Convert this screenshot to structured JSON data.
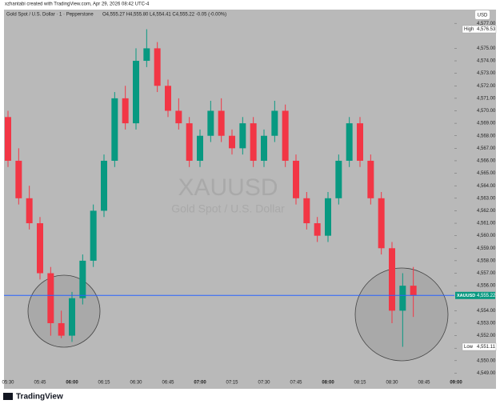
{
  "chart_data": {
    "type": "candlestick",
    "header": "xzhantabi created with TradingView.com, Apr 29, 2026 08:42 UTC-4",
    "title": "Gold Spot / U.S. Dollar · 1 · Pepperstone",
    "ohlc_text": "O4,555.27 H4,555.80 L4,554.41 C4,555.22 -0.05 (-0.00%)",
    "currency": "USD",
    "watermark_symbol": "XAUUSD",
    "watermark_name": "Gold Spot / U.S. Dollar",
    "brand": "TradingView",
    "up_color": "#089981",
    "down_color": "#f23645",
    "categories": [
      "05:30",
      null,
      null,
      "05:45",
      null,
      null,
      "06:00",
      null,
      null,
      "06:15",
      null,
      null,
      "06:30",
      null,
      null,
      "06:45",
      null,
      null,
      "07:00",
      null,
      null,
      "07:15",
      null,
      null,
      "07:30",
      null,
      null,
      "07:45",
      null,
      null,
      "08:00",
      null,
      null,
      "08:15",
      null,
      null,
      "08:30",
      null,
      null,
      "08:45",
      null,
      null,
      "09:00"
    ],
    "open": [
      4569.5,
      4566,
      4563,
      4561,
      4557,
      4553,
      4552,
      4555,
      4558,
      4562,
      4566,
      4571,
      4569,
      4574,
      4575,
      4572,
      4570,
      4569,
      4566,
      4568,
      4570,
      4568,
      4567,
      4569,
      4566,
      4568,
      4570,
      4566,
      4563,
      4561,
      4560,
      4563,
      4566,
      4569,
      4566,
      4563,
      4559,
      4554,
      4556,
      null,
      null,
      null,
      null
    ],
    "high": [
      4570,
      4567,
      4564,
      4561.5,
      4557.5,
      4554,
      4555.5,
      4558.5,
      4562.5,
      4566.5,
      4571.5,
      4572,
      4575,
      4576.53,
      4575.5,
      4572.5,
      4571,
      4569.5,
      4568.5,
      4570.8,
      4571,
      4568.5,
      4569.5,
      4569.5,
      4568.5,
      4570.8,
      4570.5,
      4566.5,
      4563.5,
      4561.5,
      4563.5,
      4566.5,
      4569.5,
      4569.5,
      4566.5,
      4563.5,
      4559.5,
      4557,
      4557.5,
      null,
      null,
      null,
      null
    ],
    "low": [
      4565.5,
      4562.5,
      4560.5,
      4556.5,
      4552,
      4551.8,
      4551.5,
      4554.5,
      4557.5,
      4561.5,
      4565.5,
      4568.5,
      4568.5,
      4573.5,
      4571.5,
      4569.5,
      4568.5,
      4565.5,
      4565.5,
      4567.5,
      4567.5,
      4566.5,
      4566.5,
      4565.5,
      4565.5,
      4567.5,
      4565.5,
      4562.5,
      4560.5,
      4559.5,
      4559.5,
      4562.5,
      4565.5,
      4565.5,
      4562.5,
      4558.5,
      4553,
      4551.11,
      4553.5,
      null,
      null,
      null,
      null
    ],
    "close": [
      4566,
      4563,
      4561,
      4557,
      4553,
      4552,
      4555,
      4558,
      4562,
      4566,
      4571,
      4569,
      4574,
      4575,
      4572,
      4570,
      4569,
      4566,
      4568,
      4570,
      4568,
      4567,
      4569,
      4566,
      4568,
      4570,
      4566,
      4563,
      4561,
      4560,
      4563,
      4566,
      4569,
      4566,
      4563,
      4559,
      4554,
      4556,
      4555.22,
      null,
      null,
      null,
      null
    ],
    "ylim": [
      4548.9,
      4578.1
    ],
    "yticks": [
      {
        "value": 4549,
        "label": "4,549.00"
      },
      {
        "value": 4550,
        "label": "4,550.00"
      },
      {
        "value": 4551,
        "label": "4,551.00"
      },
      {
        "value": 4552,
        "label": "4,552.00"
      },
      {
        "value": 4553,
        "label": "4,553.00"
      },
      {
        "value": 4554,
        "label": "4,554.00"
      },
      {
        "value": 4556,
        "label": "4,556.00"
      },
      {
        "value": 4557,
        "label": "4,557.00"
      },
      {
        "value": 4558,
        "label": "4,558.00"
      },
      {
        "value": 4559,
        "label": "4,559.00"
      },
      {
        "value": 4560,
        "label": "4,560.00"
      },
      {
        "value": 4561,
        "label": "4,561.00"
      },
      {
        "value": 4562,
        "label": "4,562.00"
      },
      {
        "value": 4563,
        "label": "4,563.00"
      },
      {
        "value": 4564,
        "label": "4,564.00"
      },
      {
        "value": 4565,
        "label": "4,565.00"
      },
      {
        "value": 4566,
        "label": "4,566.00"
      },
      {
        "value": 4567,
        "label": "4,567.00"
      },
      {
        "value": 4568,
        "label": "4,568.00"
      },
      {
        "value": 4569,
        "label": "4,569.00"
      },
      {
        "value": 4570,
        "label": "4,570.00"
      },
      {
        "value": 4571,
        "label": "4,571.00"
      },
      {
        "value": 4572,
        "label": "4,572.00"
      },
      {
        "value": 4573,
        "label": "4,573.00"
      },
      {
        "value": 4574,
        "label": "4,574.00"
      },
      {
        "value": 4575,
        "label": "4,575.00"
      },
      {
        "value": 4577,
        "label": "4,577.00"
      }
    ],
    "high_marker": {
      "text": "High",
      "value": 4576.53,
      "label": "4,576.53"
    },
    "low_marker": {
      "text": "Low",
      "value": 4551.11,
      "label": "4,551.11"
    },
    "last_price": {
      "symbol": "XAUUSD",
      "value": 4555.22,
      "label": "4,555.22",
      "color": "#2962ff"
    }
  }
}
